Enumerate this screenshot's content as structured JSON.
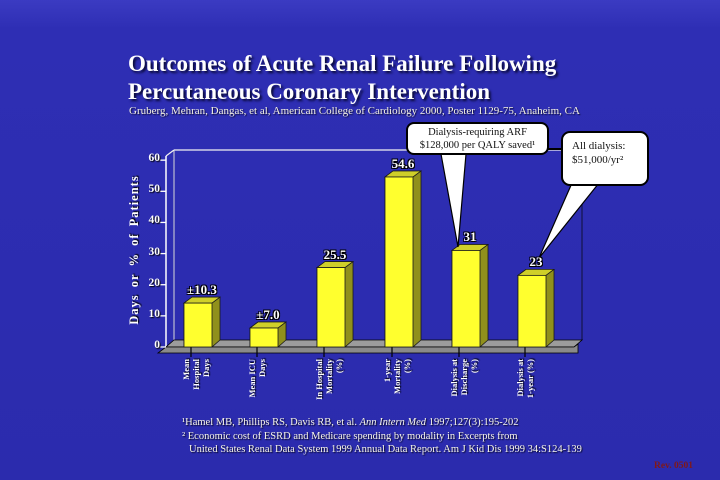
{
  "slide": {
    "title_line1": "Outcomes of Acute Renal Failure Following",
    "title_line2": "Percutaneous Coronary Intervention",
    "subtitle": "Gruberg, Mehran, Dangas, et al, American College of Cardiology 2000, Poster 1129-75, Anaheim, CA",
    "rev_label": "Rev. 0501",
    "background_color": "#2B2BAD",
    "title_color": "#FFFFFF"
  },
  "callouts": [
    {
      "lines": [
        "Dialysis-requiring ARF",
        "$128,000 per QALY saved¹"
      ]
    },
    {
      "lines": [
        "All dialysis:",
        "$51,000/yr²"
      ]
    }
  ],
  "chart_data": {
    "type": "bar",
    "title": "",
    "xlabel": "",
    "ylabel": "Days or % of Patients",
    "ylim": [
      0,
      60
    ],
    "yticks": [
      0,
      10,
      20,
      30,
      40,
      50,
      60
    ],
    "grid": false,
    "legend": "none",
    "categories": [
      "Mean Hospital Days",
      "Mean ICU Days",
      "In Hospital Mortality (%)",
      "1-year Mortality (%)",
      "Dialysis at Discharge (%)",
      "Dialysis at 1-year (%)"
    ],
    "category_lines": [
      [
        "Mean",
        "Hospital",
        "Days"
      ],
      [
        "Mean ICU",
        "Days"
      ],
      [
        "In Hospital",
        "Mortality",
        "(%)"
      ],
      [
        "1-year",
        "Mortality",
        "(%)"
      ],
      [
        "Dialysis at",
        "Discharge",
        "(%)"
      ],
      [
        "Dialysis at",
        "1-year (%)"
      ]
    ],
    "values": [
      14.1,
      6.1,
      25.5,
      54.6,
      31,
      23
    ],
    "bar_labels": [
      "±10.3",
      "±7.0",
      "25.5",
      "54.6",
      "31",
      "23"
    ],
    "bar_face_color": "#FFFF2E",
    "bar_top_color": "#CFCF29",
    "bar_side_color": "#90901C",
    "floor_top_color": "#9C9C9C",
    "floor_front_color": "#8A8A8A",
    "axis_color": "#FFFFFF"
  },
  "footnotes": {
    "f1_pre": "¹Hamel MB, Phillips RS, Davis RB, et al. ",
    "f1_italic": "Ann Intern Med",
    "f1_post": " 1997;127(3):195-202",
    "f2": "² Economic cost of ESRD and Medicare spending by modality in Excerpts from",
    "f3": "United States Renal Data System  1999 Annual Data Report. Am J Kid Dis 1999  34:S124-139"
  }
}
